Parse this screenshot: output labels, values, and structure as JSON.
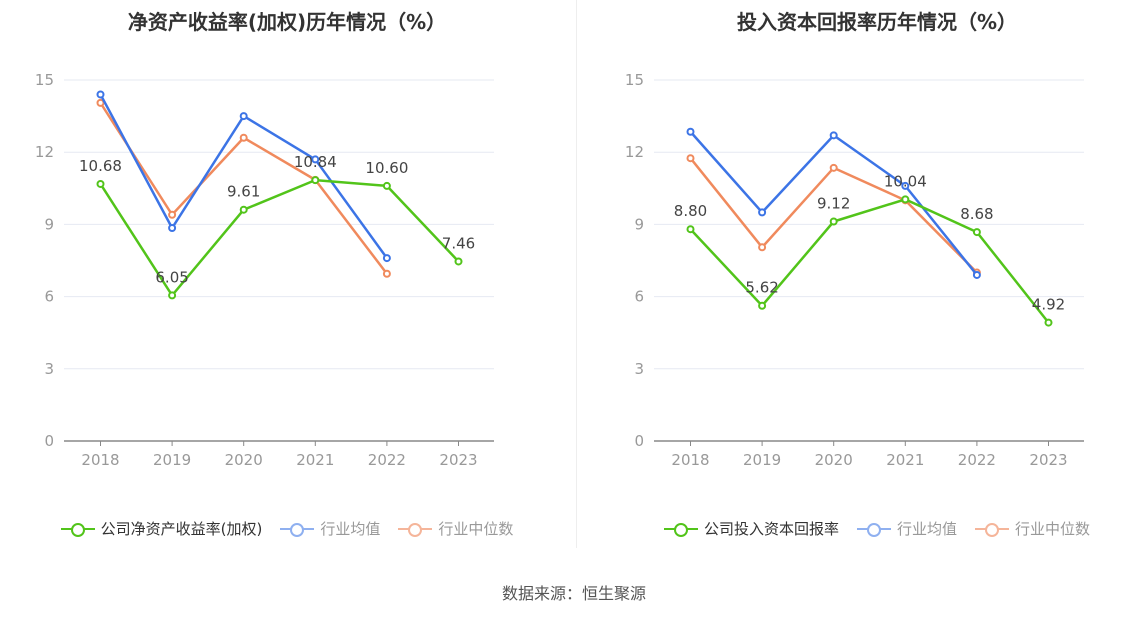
{
  "source": "数据来源：恒生聚源",
  "colors": {
    "company": "#52c41a",
    "avg": "#3c74e6",
    "median": "#f08a5d",
    "grid": "#e6e9f2",
    "axis": "#888888",
    "label": "#999999"
  },
  "chart_data": [
    {
      "type": "line",
      "title": "净资产收益率(加权)历年情况（%）",
      "categories": [
        "2018",
        "2019",
        "2020",
        "2021",
        "2022",
        "2023"
      ],
      "ylim": [
        0,
        15
      ],
      "yticks": [
        0,
        3,
        6,
        9,
        12,
        15
      ],
      "grid": true,
      "legend_position": "bottom",
      "series": [
        {
          "name": "公司净资产收益率(加权)",
          "key": "company",
          "values": [
            10.68,
            6.05,
            9.61,
            10.84,
            10.6,
            7.46
          ],
          "labels": [
            "10.68",
            "6.05",
            "9.61",
            "10.84",
            "10.60",
            "7.46"
          ]
        },
        {
          "name": "行业均值",
          "key": "avg",
          "values": [
            14.4,
            8.85,
            13.5,
            11.7,
            7.6,
            null
          ]
        },
        {
          "name": "行业中位数",
          "key": "median",
          "values": [
            14.05,
            9.4,
            12.6,
            10.85,
            6.95,
            null
          ]
        }
      ]
    },
    {
      "type": "line",
      "title": "投入资本回报率历年情况（%）",
      "categories": [
        "2018",
        "2019",
        "2020",
        "2021",
        "2022",
        "2023"
      ],
      "ylim": [
        0,
        15
      ],
      "yticks": [
        0,
        3,
        6,
        9,
        12,
        15
      ],
      "grid": true,
      "legend_position": "bottom",
      "series": [
        {
          "name": "公司投入资本回报率",
          "key": "company",
          "values": [
            8.8,
            5.62,
            9.12,
            10.04,
            8.68,
            4.92
          ],
          "labels": [
            "8.80",
            "5.62",
            "9.12",
            "10.04",
            "8.68",
            "4.92"
          ]
        },
        {
          "name": "行业均值",
          "key": "avg",
          "values": [
            12.85,
            9.5,
            12.7,
            10.6,
            6.9,
            null
          ]
        },
        {
          "name": "行业中位数",
          "key": "median",
          "values": [
            11.75,
            8.05,
            11.35,
            10.0,
            7.0,
            null
          ]
        }
      ]
    }
  ]
}
